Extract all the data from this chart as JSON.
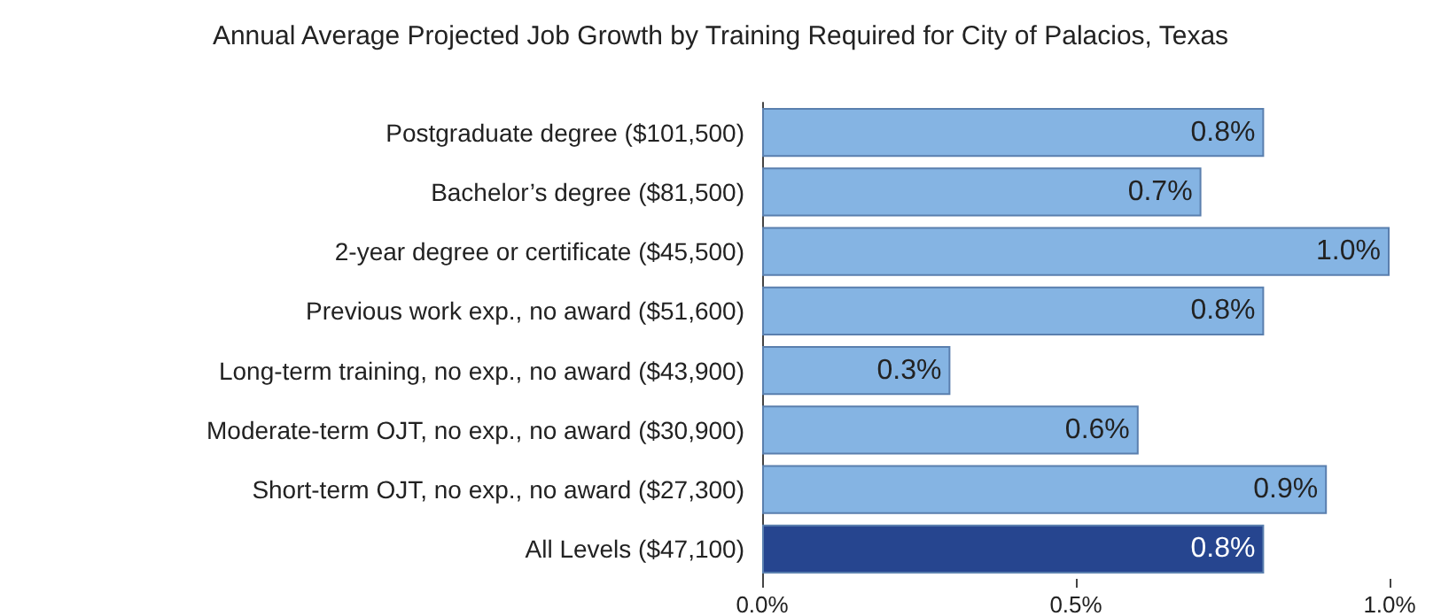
{
  "chart_data": {
    "type": "bar",
    "orientation": "horizontal",
    "title": "Annual Average Projected Job Growth by Training Required for City of Palacios, Texas",
    "categories": [
      "Postgraduate degree ($101,500)",
      "Bachelor’s degree ($81,500)",
      "2-year degree or certificate ($45,500)",
      "Previous work exp., no award ($51,600)",
      "Long-term training, no exp., no award ($43,900)",
      "Moderate-term OJT, no exp., no award ($30,900)",
      "Short-term OJT, no exp., no award ($27,300)",
      "All Levels ($47,100)"
    ],
    "values": [
      0.8,
      0.7,
      1.0,
      0.8,
      0.3,
      0.6,
      0.9,
      0.8
    ],
    "value_labels": [
      "0.8%",
      "0.7%",
      "1.0%",
      "0.8%",
      "0.3%",
      "0.6%",
      "0.9%",
      "0.8%"
    ],
    "colors": [
      "#85b4e3",
      "#85b4e3",
      "#85b4e3",
      "#85b4e3",
      "#85b4e3",
      "#85b4e3",
      "#85b4e3",
      "#26458f"
    ],
    "xlim": [
      0,
      1
    ],
    "xticks": [
      {
        "value": 0,
        "label": "0.0%"
      },
      {
        "value": 0.5,
        "label": "0.5%"
      },
      {
        "value": 1,
        "label": "1.0%"
      }
    ],
    "grid": false
  }
}
